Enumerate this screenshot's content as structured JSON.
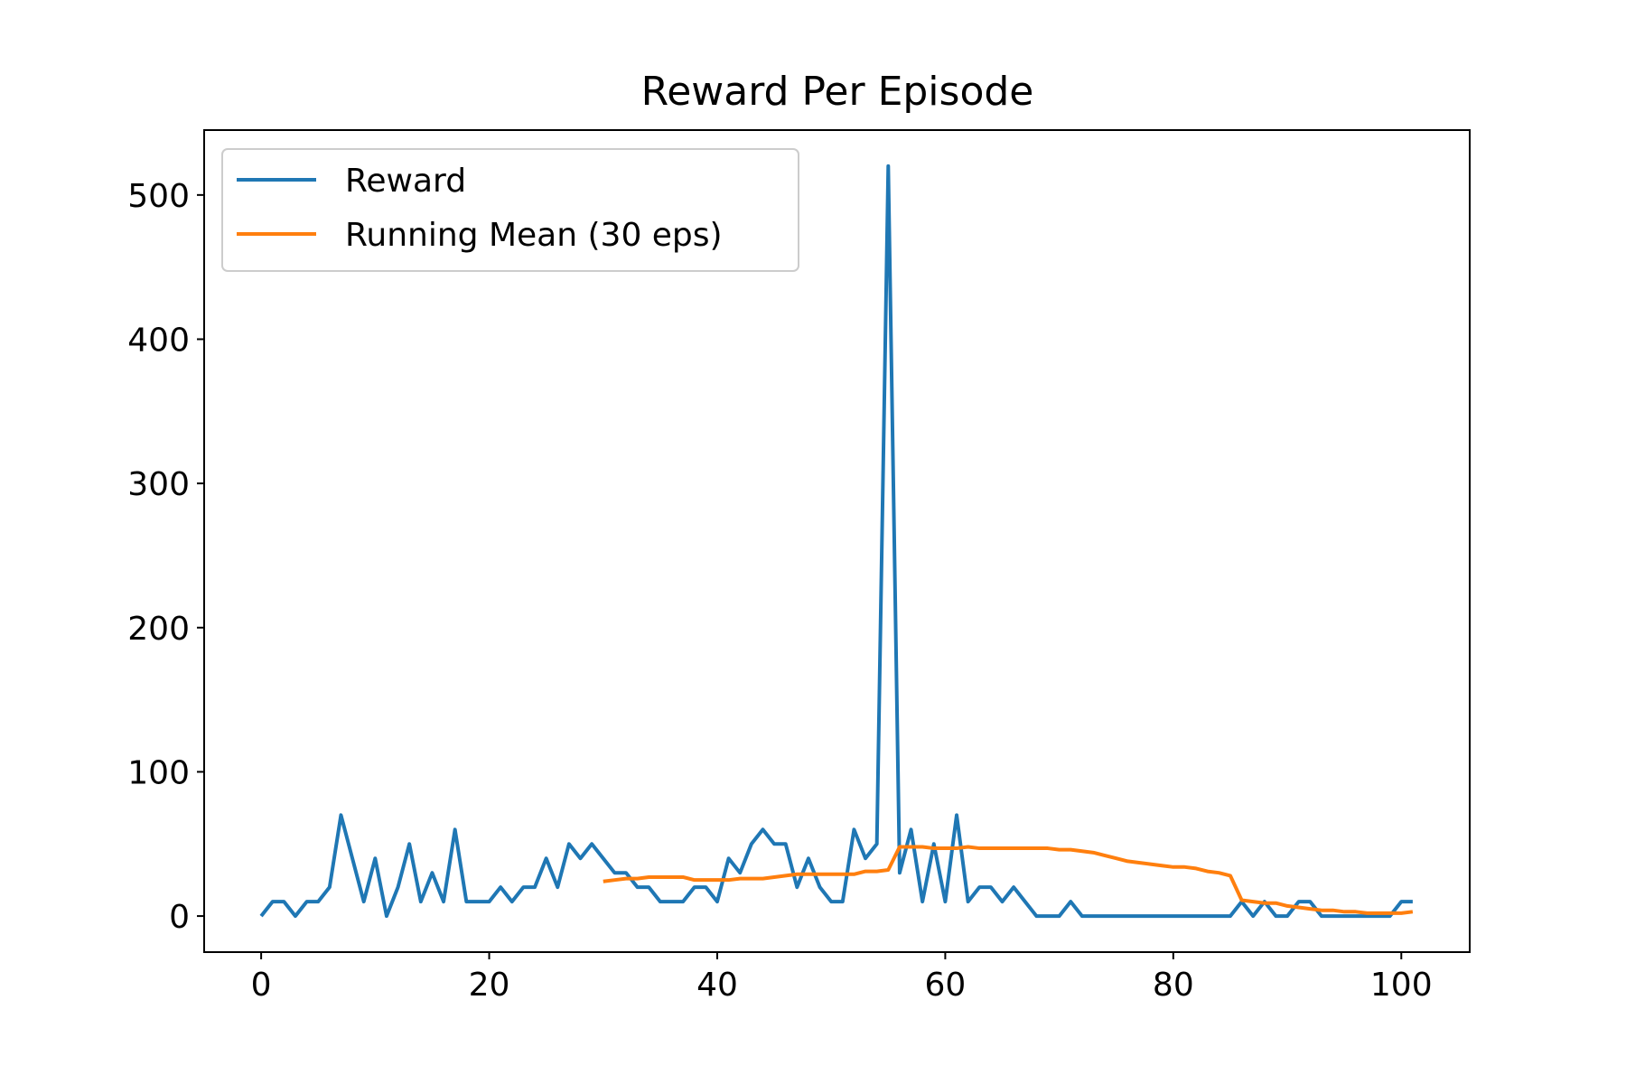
{
  "chart_data": {
    "type": "line",
    "title": "Reward Per Episode",
    "xlabel": "",
    "ylabel": "",
    "xlim": [
      -5,
      106
    ],
    "ylim": [
      -25,
      545
    ],
    "xticks": [
      0,
      20,
      40,
      60,
      80,
      100
    ],
    "yticks": [
      0,
      100,
      200,
      300,
      400,
      500
    ],
    "grid": false,
    "legend_position": "upper-left",
    "series": [
      {
        "name": "Reward",
        "color": "#1f77b4",
        "x": [
          0,
          1,
          2,
          3,
          4,
          5,
          6,
          7,
          8,
          9,
          10,
          11,
          12,
          13,
          14,
          15,
          16,
          17,
          18,
          19,
          20,
          21,
          22,
          23,
          24,
          25,
          26,
          27,
          28,
          29,
          30,
          31,
          32,
          33,
          34,
          35,
          36,
          37,
          38,
          39,
          40,
          41,
          42,
          43,
          44,
          45,
          46,
          47,
          48,
          49,
          50,
          51,
          52,
          53,
          54,
          55,
          56,
          57,
          58,
          59,
          60,
          61,
          62,
          63,
          64,
          65,
          66,
          67,
          68,
          69,
          70,
          71,
          72,
          73,
          74,
          75,
          76,
          77,
          78,
          79,
          80,
          81,
          82,
          83,
          84,
          85,
          86,
          87,
          88,
          89,
          90,
          91,
          92,
          93,
          94,
          95,
          96,
          97,
          98,
          99,
          100,
          101
        ],
        "y": [
          0,
          10,
          10,
          0,
          10,
          10,
          20,
          70,
          40,
          10,
          40,
          0,
          20,
          50,
          10,
          30,
          10,
          60,
          10,
          10,
          10,
          20,
          10,
          20,
          20,
          40,
          20,
          50,
          40,
          50,
          40,
          30,
          30,
          20,
          20,
          10,
          10,
          10,
          20,
          20,
          10,
          40,
          30,
          50,
          60,
          50,
          50,
          20,
          40,
          20,
          10,
          10,
          60,
          40,
          50,
          520,
          30,
          60,
          10,
          50,
          10,
          70,
          10,
          20,
          20,
          10,
          20,
          10,
          0,
          0,
          0,
          10,
          0,
          0,
          0,
          0,
          0,
          0,
          0,
          0,
          0,
          0,
          0,
          0,
          0,
          0,
          10,
          0,
          10,
          0,
          0,
          10,
          10,
          0,
          0,
          0,
          0,
          0,
          0,
          0,
          10,
          10
        ]
      },
      {
        "name": "Running Mean (30 eps)",
        "color": "#ff7f0e",
        "x": [
          30,
          31,
          32,
          33,
          34,
          35,
          36,
          37,
          38,
          39,
          40,
          41,
          42,
          43,
          44,
          45,
          46,
          47,
          48,
          49,
          50,
          51,
          52,
          53,
          54,
          55,
          56,
          57,
          58,
          59,
          60,
          61,
          62,
          63,
          64,
          65,
          66,
          67,
          68,
          69,
          70,
          71,
          72,
          73,
          74,
          75,
          76,
          77,
          78,
          79,
          80,
          81,
          82,
          83,
          84,
          85,
          86,
          87,
          88,
          89,
          90,
          91,
          92,
          93,
          94,
          95,
          96,
          97,
          98,
          99,
          100,
          101
        ],
        "y": [
          24,
          25,
          26,
          26,
          27,
          27,
          27,
          27,
          25,
          25,
          25,
          25,
          26,
          26,
          26,
          27,
          28,
          29,
          29,
          29,
          29,
          29,
          29,
          31,
          31,
          32,
          48,
          48,
          48,
          47,
          47,
          47,
          48,
          47,
          47,
          47,
          47,
          47,
          47,
          47,
          46,
          46,
          45,
          44,
          42,
          40,
          38,
          37,
          36,
          35,
          34,
          34,
          33,
          31,
          30,
          28,
          11,
          10,
          9,
          9,
          7,
          6,
          5,
          4,
          4,
          3,
          3,
          2,
          2,
          2,
          2,
          3
        ]
      }
    ]
  }
}
